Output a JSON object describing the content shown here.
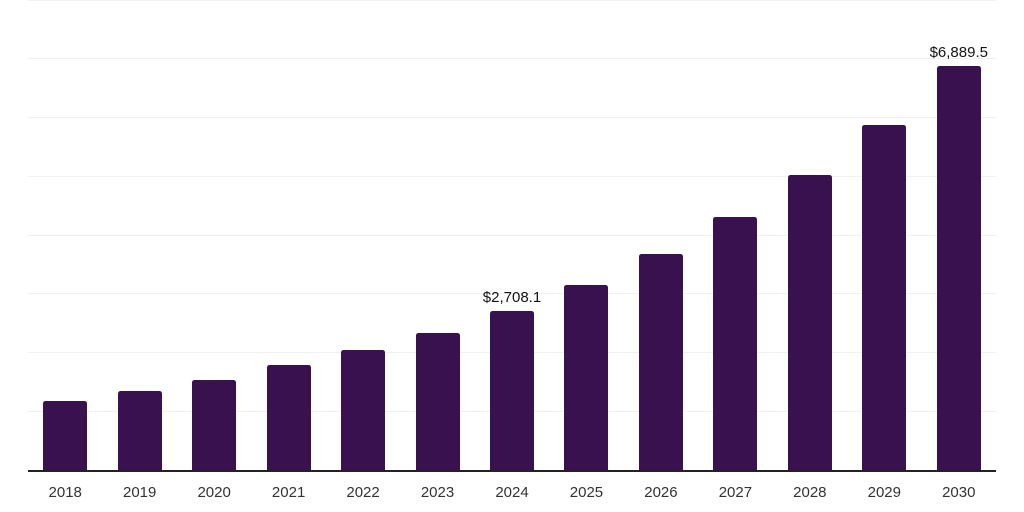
{
  "chart_data": {
    "type": "bar",
    "title": "",
    "xlabel": "",
    "ylabel": "",
    "categories": [
      "2018",
      "2019",
      "2020",
      "2021",
      "2022",
      "2023",
      "2024",
      "2025",
      "2026",
      "2027",
      "2028",
      "2029",
      "2030"
    ],
    "values": [
      1175,
      1355,
      1545,
      1790,
      2055,
      2340,
      2708.1,
      3160,
      3680,
      4310,
      5025,
      5875,
      6889.5
    ],
    "data_labels": [
      "",
      "",
      "",
      "",
      "",
      "",
      "$2,708.1",
      "",
      "",
      "",
      "",
      "",
      "$6,889.5"
    ],
    "ylim": [
      0,
      8000
    ],
    "grid_step": 1000,
    "grid": "horizontal-only",
    "legend": "none",
    "y_axis_tick_labels": "none",
    "colors": {
      "bar": "#38114E",
      "gridline": "#f0f0f0",
      "axis_line": "#232323",
      "tick_label": "#333333",
      "data_label": "#141414",
      "background": "#ffffff"
    }
  }
}
